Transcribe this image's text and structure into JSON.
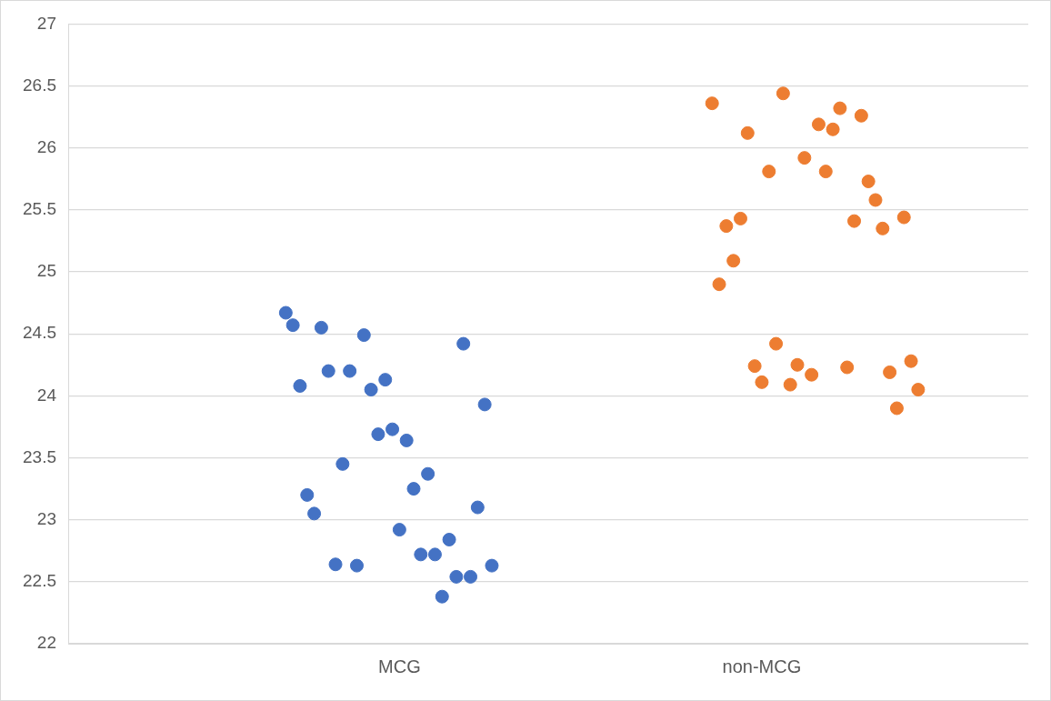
{
  "chart_data": {
    "type": "scatter",
    "categories": [
      null,
      null,
      null,
      null,
      null,
      null,
      null,
      null,
      null,
      null,
      null,
      null,
      null,
      null,
      null,
      null,
      null,
      null,
      null,
      null,
      null,
      null,
      null,
      null,
      null,
      null,
      null,
      null,
      null,
      null,
      null,
      null,
      null,
      null,
      null,
      null,
      null,
      null,
      null,
      null,
      null,
      null,
      null,
      null,
      null,
      null,
      "MCG",
      null,
      null,
      null,
      null,
      null,
      null,
      null,
      null,
      null,
      null,
      null,
      null,
      null,
      null,
      null,
      null,
      null,
      null,
      null,
      null,
      null,
      null,
      null,
      null,
      null,
      null,
      null,
      null,
      null,
      null,
      null,
      null,
      null,
      null,
      null,
      null,
      null,
      null,
      null,
      null,
      null,
      null,
      null,
      null,
      null,
      null,
      null,
      null,
      null,
      null,
      "non-MCG",
      null,
      null,
      null,
      null,
      null,
      null,
      null,
      null,
      null,
      null,
      null,
      null,
      null,
      null,
      null,
      null,
      null,
      null,
      null,
      null,
      null,
      null,
      null,
      null,
      null,
      null,
      null,
      null,
      null,
      null,
      null,
      null,
      null,
      null,
      null,
      null,
      null
    ],
    "series": [
      {
        "color": "#4472c4",
        "values": [
          null,
          null,
          null,
          null,
          null,
          null,
          null,
          null,
          null,
          null,
          null,
          null,
          null,
          null,
          null,
          null,
          null,
          null,
          null,
          null,
          null,
          null,
          null,
          null,
          null,
          null,
          null,
          null,
          null,
          null,
          24.67,
          24.57,
          24.08,
          23.2,
          23.05,
          24.55,
          24.2,
          22.64,
          23.45,
          24.2,
          22.63,
          24.49,
          24.05,
          23.69,
          24.13,
          23.73,
          22.92,
          23.64,
          23.25,
          22.72,
          23.37,
          22.72,
          22.38,
          22.84,
          22.54,
          24.42,
          22.54,
          23.1,
          23.93,
          22.63,
          null,
          null,
          null,
          null,
          null,
          null,
          null,
          null,
          null,
          null,
          null,
          null,
          null,
          null,
          null,
          null,
          null,
          null,
          null,
          null,
          null,
          null,
          null,
          null,
          null,
          null,
          null,
          null,
          null,
          null,
          null,
          null,
          null,
          null,
          null,
          null,
          null,
          null,
          null,
          null,
          null,
          null,
          null,
          null,
          null,
          null,
          null,
          null,
          null,
          null,
          null,
          null,
          null,
          null,
          null,
          null,
          null,
          null,
          null,
          null,
          null,
          null,
          null,
          null,
          null,
          null,
          null,
          null,
          null,
          null,
          null,
          null,
          null,
          null,
          null
        ]
      },
      {
        "color": "#ed7d31",
        "values": [
          null,
          null,
          null,
          null,
          null,
          null,
          null,
          null,
          null,
          null,
          null,
          null,
          null,
          null,
          null,
          null,
          null,
          null,
          null,
          null,
          null,
          null,
          null,
          null,
          null,
          null,
          null,
          null,
          null,
          null,
          null,
          null,
          null,
          null,
          null,
          null,
          null,
          null,
          null,
          null,
          null,
          null,
          null,
          null,
          null,
          null,
          null,
          null,
          null,
          null,
          null,
          null,
          null,
          null,
          null,
          null,
          null,
          null,
          null,
          null,
          null,
          null,
          null,
          null,
          null,
          null,
          null,
          null,
          null,
          null,
          null,
          null,
          null,
          null,
          null,
          null,
          null,
          null,
          null,
          null,
          null,
          null,
          null,
          null,
          null,
          null,
          null,
          null,
          null,
          null,
          26.36,
          24.9,
          25.37,
          25.09,
          25.43,
          26.12,
          24.24,
          24.11,
          25.81,
          24.42,
          26.44,
          24.09,
          24.25,
          25.92,
          24.17,
          26.19,
          25.81,
          26.15,
          26.32,
          24.23,
          25.41,
          26.26,
          25.73,
          25.58,
          25.35,
          24.19,
          23.9,
          25.44,
          24.28,
          24.05,
          null,
          null,
          null,
          null,
          null,
          null,
          null,
          null,
          null,
          null,
          null,
          null,
          null,
          null,
          null
        ]
      }
    ],
    "ylim": [
      22,
      27
    ],
    "yticks": [
      22,
      22.5,
      23,
      23.5,
      24,
      24.5,
      25,
      25.5,
      26,
      26.5,
      27
    ],
    "grid": "y",
    "marker": "circle",
    "legend": false
  }
}
